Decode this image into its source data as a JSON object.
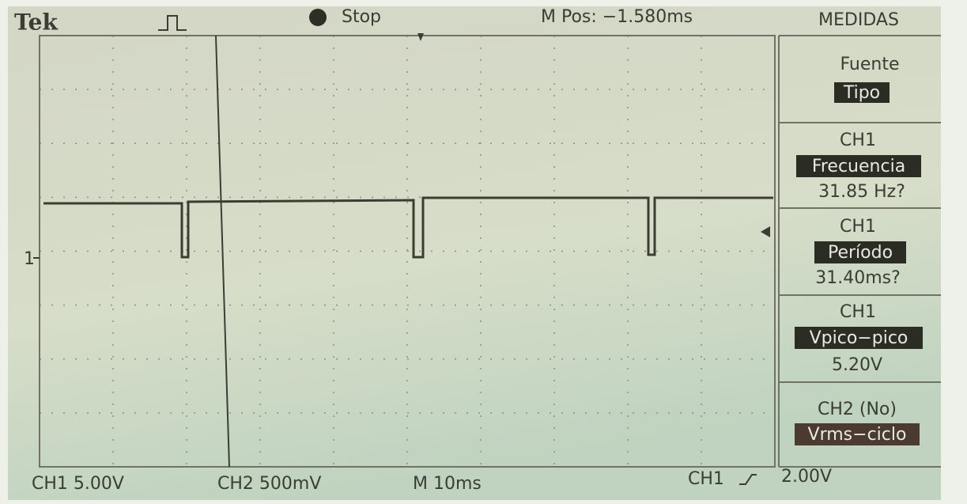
{
  "header": {
    "brand": "Tek",
    "status": "Stop",
    "position": "M Pos: −1.580ms",
    "menu_title": "MEDIDAS"
  },
  "menu": {
    "items": [
      {
        "label": "Fuente",
        "value": "Tipo"
      },
      {
        "channel": "CH1",
        "label": "Frecuencia",
        "value": "31.85 Hz?"
      },
      {
        "channel": "CH1",
        "label": "Período",
        "value": "31.40ms?"
      },
      {
        "channel": "CH1",
        "label": "Vpico−pico",
        "value": "5.20V"
      },
      {
        "channel": "CH2 (No)",
        "label": "Vrms−ciclo"
      }
    ]
  },
  "screen": {
    "channel_marker": "1"
  },
  "footer": {
    "ch1_scale": "CH1 5.00V",
    "ch2_scale": "CH2 500mV",
    "timebase": "M 10ms",
    "trigger_source": "CH1",
    "trigger_level": "2.00V"
  }
}
